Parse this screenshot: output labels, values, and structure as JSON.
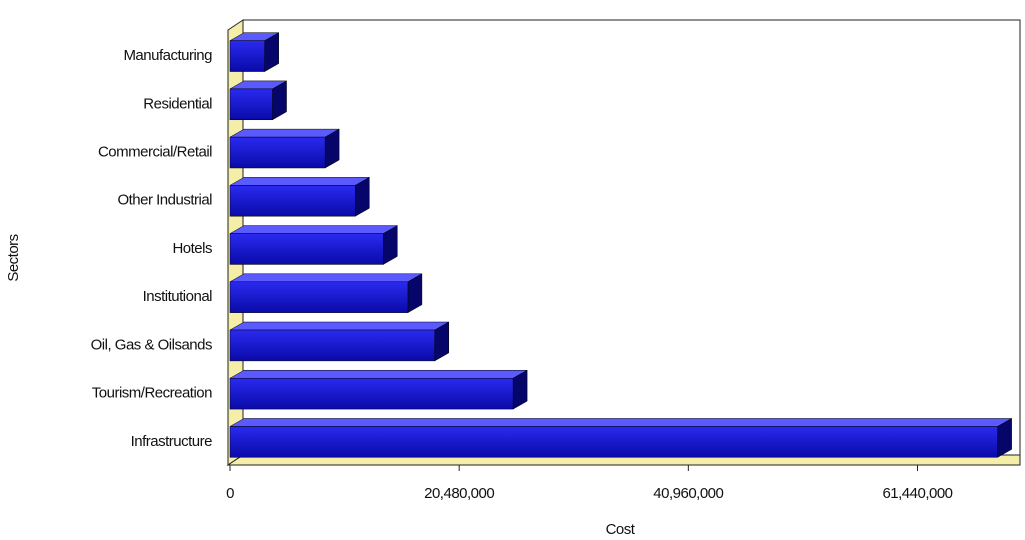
{
  "chart_data": {
    "type": "bar3d_horizontal",
    "x_label": "Cost",
    "y_label": "Sectors",
    "categories": [
      "Manufacturing",
      "Residential",
      "Commercial/Retail",
      "Other Industrial",
      "Hotels",
      "Institutional",
      "Oil, Gas & Oilsands",
      "Tourism/Recreation",
      "Infrastructure"
    ],
    "values": [
      3100000,
      3800000,
      8500000,
      11200000,
      13700000,
      15900000,
      18300000,
      25300000,
      68600000
    ],
    "color": "#1414d8",
    "xlim": [
      0,
      70600000
    ],
    "xticks": [
      0,
      {
        "value": 20480000,
        "label": "20,480,000"
      },
      {
        "value": 40960000,
        "label": "40,960,000"
      },
      {
        "value": 61440000,
        "label": "61,440,000"
      }
    ]
  }
}
